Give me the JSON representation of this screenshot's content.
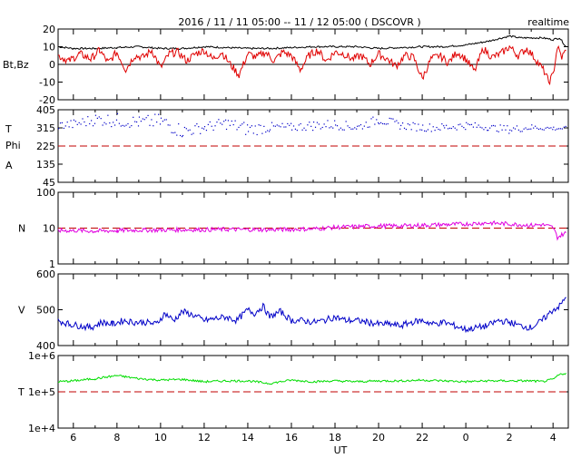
{
  "header": {
    "title": "2016 / 11 / 11   05:00 -- 11 / 12   05:00 ( DSCOVR )",
    "mode": "realtime"
  },
  "colors": {
    "bt": "#000000",
    "bz": "#e00000",
    "temperature_phi": "#0000c8",
    "density": "#e000e0",
    "speed": "#0000c8",
    "temperature": "#00dd00",
    "reference_line": "#c00000"
  },
  "chart_data": [
    {
      "type": "line",
      "panel": "magnetic-field",
      "ylabel": "Bt,Bz",
      "ylim": [
        -20,
        20
      ],
      "yticks": [
        "20",
        "10",
        "0",
        "-10",
        "-20"
      ],
      "reference_line": 0,
      "x_range_hours": [
        5.3,
        28.7
      ],
      "series": [
        {
          "name": "Bt",
          "color": "#000000",
          "x": [
            5.3,
            6,
            7,
            8,
            9,
            10,
            11,
            12,
            13,
            14,
            15,
            16,
            17,
            18,
            19,
            20,
            21,
            22,
            23,
            24,
            25,
            26,
            26.5,
            27,
            27.5,
            28,
            28.3,
            28.6
          ],
          "y": [
            10,
            9,
            9,
            9.5,
            10,
            9,
            9,
            10,
            9.5,
            9,
            9,
            9.5,
            10,
            10,
            10,
            9,
            9.5,
            10,
            10,
            11,
            13,
            16,
            15,
            15,
            15,
            14,
            15,
            10
          ]
        },
        {
          "name": "Bz",
          "color": "#e00000",
          "x": [
            5.3,
            5.8,
            6.3,
            6.8,
            7.2,
            7.6,
            8,
            8.4,
            8.8,
            9.2,
            9.6,
            10,
            10.4,
            10.8,
            11.2,
            11.6,
            12,
            12.4,
            12.8,
            13.2,
            13.6,
            14,
            14.4,
            14.8,
            15.2,
            15.6,
            16,
            16.4,
            16.8,
            17.2,
            17.6,
            18,
            18.4,
            18.8,
            19.2,
            19.6,
            20,
            20.4,
            20.8,
            21.2,
            21.6,
            22,
            22.4,
            22.8,
            23.2,
            23.6,
            24,
            24.4,
            24.8,
            25.2,
            25.6,
            26,
            26.4,
            26.8,
            27.2,
            27.6,
            27.8,
            28,
            28.2,
            28.4,
            28.6
          ],
          "y": [
            5,
            2,
            6,
            3,
            8,
            1,
            7,
            -3,
            5,
            4,
            8,
            -2,
            6,
            7,
            2,
            6,
            8,
            3,
            7,
            0,
            -6,
            6,
            4,
            7,
            2,
            7,
            5,
            -3,
            5,
            8,
            2,
            7,
            6,
            3,
            5,
            0,
            6,
            3,
            -1,
            5,
            4,
            -8,
            3,
            5,
            1,
            7,
            3,
            -4,
            9,
            4,
            6,
            10,
            5,
            9,
            3,
            -4,
            -10,
            -6,
            10,
            4,
            8
          ]
        }
      ]
    },
    {
      "type": "scatter",
      "panel": "temperature-phi",
      "ylabel_lines": [
        "T",
        "Phi",
        "A"
      ],
      "ylim": [
        45,
        405
      ],
      "yticks": [
        "405",
        "315",
        "225",
        "135",
        "45"
      ],
      "reference_line": 225,
      "x_range_hours": [
        5.3,
        28.7
      ],
      "series": [
        {
          "name": "Phi",
          "color": "#0000c8",
          "x": [
            5.3,
            6,
            7,
            8,
            9,
            10,
            11,
            12,
            13,
            14,
            15,
            16,
            17,
            18,
            19,
            20,
            21,
            22,
            23,
            24,
            25,
            26,
            27,
            28,
            28.6
          ],
          "y": [
            330,
            335,
            360,
            355,
            345,
            350,
            300,
            320,
            340,
            310,
            320,
            320,
            330,
            335,
            320,
            360,
            330,
            320,
            320,
            330,
            320,
            310,
            320,
            315,
            315
          ],
          "spread": [
            20,
            25,
            30,
            35,
            30,
            40,
            35,
            25,
            30,
            35,
            25,
            20,
            25,
            25,
            20,
            25,
            20,
            20,
            20,
            20,
            15,
            20,
            15,
            10,
            10
          ]
        }
      ]
    },
    {
      "type": "line",
      "panel": "density",
      "ylabel": "N",
      "yscale": "log",
      "ylim": [
        1,
        100
      ],
      "yticks": [
        "100",
        "10",
        "1"
      ],
      "reference_line": 10,
      "x_range_hours": [
        5.3,
        28.7
      ],
      "series": [
        {
          "name": "N",
          "color": "#e000e0",
          "x": [
            5.3,
            6,
            7,
            8,
            9,
            10,
            11,
            12,
            13,
            14,
            15,
            16,
            17,
            18,
            19,
            20,
            21,
            22,
            23,
            24,
            25,
            26,
            27,
            27.5,
            28,
            28.2,
            28.4,
            28.6
          ],
          "y": [
            8.5,
            8.6,
            8.2,
            8.5,
            8.8,
            8.8,
            9.0,
            9.0,
            9.2,
            9.1,
            9.0,
            9.2,
            9.5,
            10.5,
            11.0,
            11.5,
            11.5,
            12.0,
            12.5,
            13.0,
            14.0,
            13.0,
            12.0,
            12.5,
            10.5,
            5.5,
            6.5,
            7.5
          ]
        }
      ]
    },
    {
      "type": "line",
      "panel": "speed",
      "ylabel": "V",
      "ylim": [
        400,
        600
      ],
      "yticks": [
        "600",
        "500",
        "400"
      ],
      "x_range_hours": [
        5.3,
        28.7
      ],
      "series": [
        {
          "name": "V",
          "color": "#0000c8",
          "x": [
            5.3,
            5.8,
            6.3,
            6.8,
            7.3,
            7.8,
            8.3,
            8.8,
            9.3,
            9.8,
            10.2,
            10.6,
            11,
            11.5,
            12,
            12.5,
            13,
            13.5,
            14,
            14.3,
            14.7,
            15,
            15.5,
            16,
            16.5,
            17,
            17.5,
            18,
            18.5,
            19,
            19.5,
            20,
            20.5,
            21,
            21.5,
            22,
            22.5,
            23,
            23.5,
            24,
            24.5,
            25,
            25.5,
            26,
            26.5,
            27,
            27.5,
            28,
            28.3,
            28.6
          ],
          "y": [
            470,
            460,
            455,
            450,
            465,
            460,
            470,
            465,
            465,
            460,
            490,
            470,
            495,
            485,
            470,
            475,
            480,
            470,
            500,
            490,
            510,
            480,
            495,
            470,
            470,
            465,
            470,
            480,
            470,
            470,
            465,
            460,
            460,
            455,
            465,
            470,
            460,
            465,
            455,
            445,
            450,
            455,
            470,
            465,
            455,
            450,
            470,
            500,
            510,
            535
          ]
        }
      ]
    },
    {
      "type": "line",
      "panel": "temperature",
      "ylabel": "T",
      "xlabel": "UT",
      "yscale": "log",
      "ylim": [
        10000,
        1000000
      ],
      "yticks": [
        "1e+6",
        "1e+5",
        "1e+4"
      ],
      "reference_line": 100000,
      "x_range_hours": [
        5.3,
        28.7
      ],
      "xticks": [
        "6",
        "8",
        "10",
        "12",
        "14",
        "16",
        "18",
        "20",
        "22",
        "0",
        "2",
        "4"
      ],
      "series": [
        {
          "name": "T",
          "color": "#00dd00",
          "x": [
            5.3,
            6,
            7,
            8,
            9,
            10,
            11,
            12,
            13,
            14,
            15,
            16,
            17,
            18,
            19,
            20,
            21,
            22,
            23,
            24,
            25,
            26,
            27,
            27.5,
            28,
            28.3,
            28.6
          ],
          "y": [
            190000,
            200000,
            230000,
            280000,
            230000,
            210000,
            220000,
            190000,
            200000,
            200000,
            170000,
            210000,
            190000,
            200000,
            190000,
            200000,
            200000,
            210000,
            200000,
            190000,
            200000,
            200000,
            200000,
            190000,
            220000,
            300000,
            330000
          ]
        }
      ]
    }
  ]
}
